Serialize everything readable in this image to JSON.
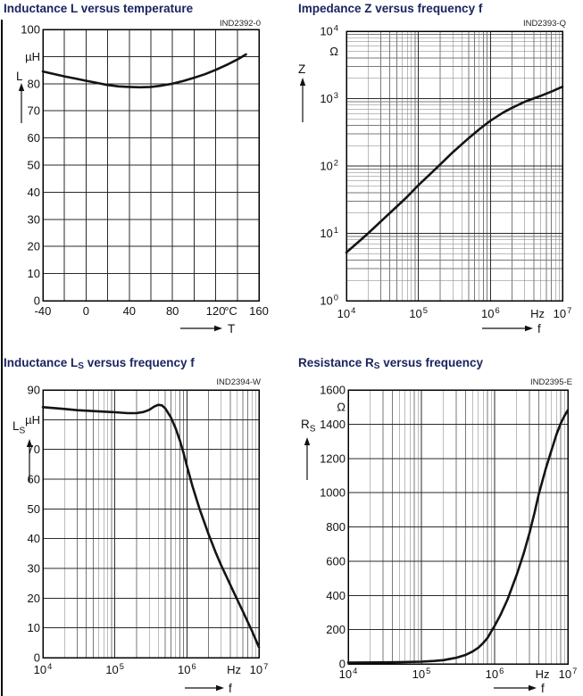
{
  "page": {
    "background": "#ffffff",
    "title_color": "#1a2560",
    "text_color": "#111111",
    "grid_major_color": "#2a2a2a",
    "grid_minor_color": "#7a7a7a",
    "border_color": "#000000",
    "curve_color": "#141414"
  },
  "chart_data": [
    {
      "type": "line",
      "code": "IND2392-0",
      "title_segments": [
        {
          "t": "Inductance L versus temperature"
        }
      ],
      "x_axis": {
        "name": "T",
        "unit": "°C",
        "scale": "linear",
        "min": -40,
        "max": 160,
        "grid_step": 20,
        "labeled_ticks": [
          -40,
          0,
          40,
          80,
          120,
          160
        ],
        "unit_at": 134
      },
      "y_axis": {
        "name_segments": [
          {
            "t": "L"
          }
        ],
        "unit": "µH",
        "scale": "linear",
        "min": 0,
        "max": 100,
        "grid_step": 10,
        "labeled_ticks": [
          100,
          80,
          70,
          60,
          50,
          40,
          30,
          20,
          10,
          0
        ],
        "unit_at": 90
      },
      "series": [
        {
          "name": "L",
          "points": [
            [
              -40,
              84.5
            ],
            [
              -30,
              83.6
            ],
            [
              -20,
              82.7
            ],
            [
              -10,
              81.9
            ],
            [
              0,
              81.1
            ],
            [
              10,
              80.3
            ],
            [
              20,
              79.5
            ],
            [
              30,
              79.0
            ],
            [
              40,
              78.8
            ],
            [
              50,
              78.7
            ],
            [
              60,
              78.8
            ],
            [
              70,
              79.3
            ],
            [
              80,
              80.0
            ],
            [
              90,
              81.0
            ],
            [
              100,
              82.2
            ],
            [
              110,
              83.5
            ],
            [
              120,
              85.1
            ],
            [
              130,
              86.9
            ],
            [
              140,
              88.9
            ],
            [
              148,
              90.8
            ]
          ]
        }
      ]
    },
    {
      "type": "line",
      "code": "IND2393-Q",
      "title_segments": [
        {
          "t": "Impedance Z versus frequency f"
        }
      ],
      "x_axis": {
        "name": "f",
        "unit": "Hz",
        "scale": "log",
        "min": 10000,
        "max": 10000000,
        "labeled_ticks": [
          10000,
          100000,
          1000000,
          10000000
        ],
        "unit_at": 4500000
      },
      "y_axis": {
        "name_segments": [
          {
            "t": "Z"
          }
        ],
        "unit": "Ω",
        "scale": "log",
        "min": 1,
        "max": 10000,
        "labeled_ticks": [
          10000,
          1000,
          100,
          10,
          1
        ],
        "unit_at": 5000
      },
      "series": [
        {
          "name": "Z",
          "points": [
            [
              10000,
              5.2
            ],
            [
              15000,
              7.6
            ],
            [
              20000,
              10
            ],
            [
              30000,
              15
            ],
            [
              50000,
              25
            ],
            [
              70000,
              35
            ],
            [
              100000,
              52
            ],
            [
              150000,
              78
            ],
            [
              200000,
              105
            ],
            [
              300000,
              160
            ],
            [
              500000,
              260
            ],
            [
              700000,
              350
            ],
            [
              1000000,
              470
            ],
            [
              1500000,
              620
            ],
            [
              2000000,
              730
            ],
            [
              3000000,
              900
            ],
            [
              5000000,
              1100
            ],
            [
              7000000,
              1270
            ],
            [
              10000000,
              1500
            ]
          ]
        }
      ]
    },
    {
      "type": "line",
      "code": "IND2394-W",
      "title_segments": [
        {
          "t": "Inductance L"
        },
        {
          "t": "S",
          "sub": true
        },
        {
          "t": " versus frequency f"
        }
      ],
      "x_axis": {
        "name": "f",
        "unit": "Hz",
        "scale": "log",
        "min": 10000,
        "max": 10000000,
        "labeled_ticks": [
          10000,
          100000,
          1000000,
          10000000
        ],
        "unit_at": 4500000
      },
      "y_axis": {
        "name_segments": [
          {
            "t": "L"
          },
          {
            "t": "S",
            "sub": true
          }
        ],
        "unit": "µH",
        "scale": "linear",
        "min": 0,
        "max": 90,
        "grid_step": 10,
        "labeled_ticks": [
          90,
          70,
          60,
          50,
          40,
          30,
          20,
          10,
          0
        ],
        "unit_at": 80
      },
      "series": [
        {
          "name": "LS",
          "points": [
            [
              10000,
              84.2
            ],
            [
              20000,
              83.6
            ],
            [
              30000,
              83.2
            ],
            [
              50000,
              82.9
            ],
            [
              70000,
              82.7
            ],
            [
              100000,
              82.5
            ],
            [
              150000,
              82.2
            ],
            [
              200000,
              82.2
            ],
            [
              250000,
              82.6
            ],
            [
              300000,
              83.3
            ],
            [
              350000,
              84.4
            ],
            [
              400000,
              85.0
            ],
            [
              450000,
              84.8
            ],
            [
              500000,
              83.8
            ],
            [
              600000,
              80.8
            ],
            [
              700000,
              77.0
            ],
            [
              800000,
              73.0
            ],
            [
              900000,
              68.8
            ],
            [
              1000000,
              64.5
            ],
            [
              1200000,
              57.5
            ],
            [
              1500000,
              50.0
            ],
            [
              2000000,
              41.5
            ],
            [
              2500000,
              35.5
            ],
            [
              3000000,
              31.0
            ],
            [
              4000000,
              24.5
            ],
            [
              5000000,
              19.5
            ],
            [
              6000000,
              15.5
            ],
            [
              7000000,
              12.0
            ],
            [
              8000000,
              9.0
            ],
            [
              10000000,
              3.5
            ]
          ]
        }
      ]
    },
    {
      "type": "line",
      "code": "IND2395-E",
      "title_segments": [
        {
          "t": "Resistance R"
        },
        {
          "t": "S",
          "sub": true
        },
        {
          "t": " versus frequency"
        }
      ],
      "x_axis": {
        "name": "f",
        "unit": "Hz",
        "scale": "log",
        "min": 10000,
        "max": 10000000,
        "labeled_ticks": [
          10000,
          100000,
          1000000,
          10000000
        ],
        "unit_at": 4500000
      },
      "y_axis": {
        "name_segments": [
          {
            "t": "R"
          },
          {
            "t": "S",
            "sub": true
          }
        ],
        "unit": "Ω",
        "scale": "linear",
        "min": 0,
        "max": 1600,
        "grid_step": 200,
        "labeled_ticks": [
          1600,
          1400,
          1200,
          1000,
          800,
          600,
          400,
          200,
          0
        ],
        "unit_at": 1500
      },
      "series": [
        {
          "name": "RS",
          "points": [
            [
              10000,
              8
            ],
            [
              30000,
              9
            ],
            [
              50000,
              10
            ],
            [
              100000,
              13
            ],
            [
              150000,
              17
            ],
            [
              200000,
              22
            ],
            [
              300000,
              36
            ],
            [
              400000,
              52
            ],
            [
              500000,
              72
            ],
            [
              600000,
              95
            ],
            [
              700000,
              122
            ],
            [
              800000,
              152
            ],
            [
              1000000,
              222
            ],
            [
              1200000,
              285
            ],
            [
              1500000,
              375
            ],
            [
              2000000,
              520
            ],
            [
              2500000,
              645
            ],
            [
              3000000,
              765
            ],
            [
              3500000,
              880
            ],
            [
              4000000,
              990
            ],
            [
              5000000,
              1140
            ],
            [
              6000000,
              1250
            ],
            [
              7000000,
              1340
            ],
            [
              8000000,
              1405
            ],
            [
              9000000,
              1448
            ],
            [
              10000000,
              1482
            ]
          ]
        }
      ]
    }
  ]
}
